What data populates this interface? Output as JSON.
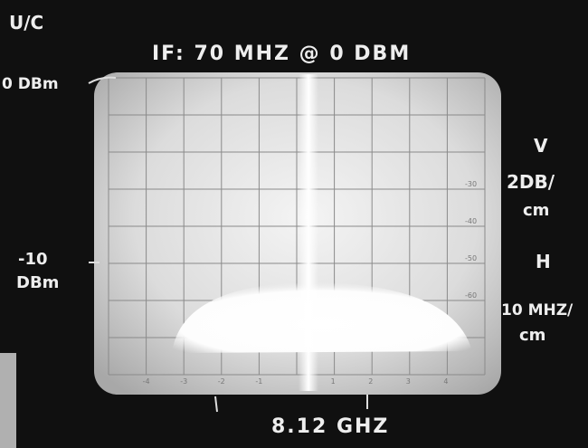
{
  "annotations": {
    "corner": "U/C",
    "title": "IF: 70 MHZ @ 0 DBM",
    "top_level": "0 DBm",
    "mid_level_value": "-10",
    "mid_level_unit": "DBm",
    "vertical_label": "V",
    "vertical_scale_1": "2DB/",
    "vertical_scale_2": "cm",
    "horizontal_label": "H",
    "horizontal_scale_1": "10 MHZ/",
    "horizontal_scale_2": "cm",
    "center_frequency": "8.12 GHZ"
  },
  "graticule": {
    "right_labels": [
      "-30",
      "-40",
      "-50",
      "-60"
    ],
    "bottom_labels": [
      "-4",
      "-3",
      "-2",
      "-1",
      "1",
      "2",
      "3",
      "4"
    ]
  }
}
